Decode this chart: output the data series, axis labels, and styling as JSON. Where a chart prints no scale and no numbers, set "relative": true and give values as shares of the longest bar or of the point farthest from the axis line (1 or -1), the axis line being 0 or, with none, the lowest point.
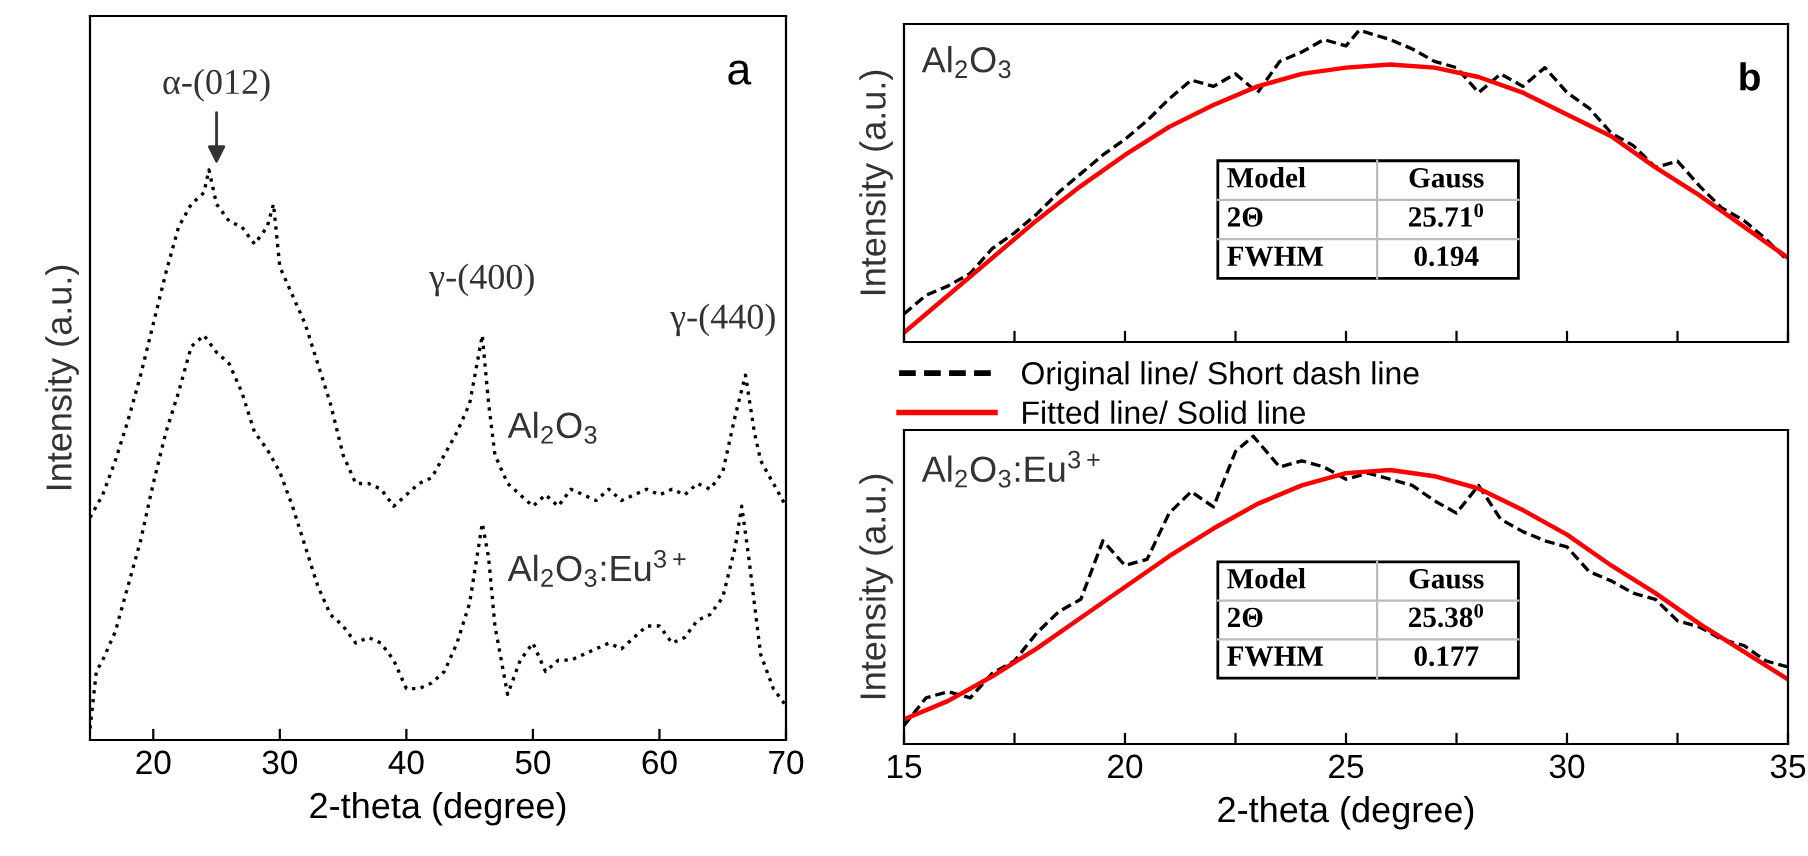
{
  "chart_data": [
    {
      "type": "line",
      "relative": true,
      "xlabel": "2-theta (degree)",
      "ylabel": "Intensity (a.u.)",
      "xlim": [
        15,
        70
      ],
      "xticks": [
        20,
        30,
        40,
        50,
        60,
        70
      ],
      "legend": false,
      "grid": false,
      "line_style": "dotted",
      "marker": "none",
      "tick_labels": "x",
      "annotations": [
        "a",
        {
          "text": "α-(012)",
          "x": 25,
          "y": 1.0
        },
        {
          "text": "γ-(400)",
          "x": 46,
          "y": 0.71
        },
        {
          "text": "γ-(440)",
          "x": 66.8,
          "y": 0.64
        }
      ],
      "series": [
        {
          "name": "Al$_{2}$O$_{3}$",
          "color": "#000000",
          "x": [
            15,
            16,
            17,
            18,
            19,
            20,
            21,
            22,
            23,
            24,
            24.4,
            25,
            26,
            27,
            28,
            29,
            29.5,
            30,
            31,
            32,
            33,
            34,
            35,
            36,
            37,
            38,
            39,
            40,
            41,
            42,
            43,
            44,
            45,
            46,
            46.5,
            47,
            48,
            49,
            50,
            51,
            52,
            53,
            54,
            55,
            56,
            57,
            58,
            59,
            60,
            61,
            62,
            63,
            64,
            65,
            66,
            66.8,
            67.5,
            68,
            69,
            70
          ],
          "values": [
            0.39,
            0.43,
            0.49,
            0.56,
            0.64,
            0.73,
            0.82,
            0.9,
            0.94,
            0.96,
            1.0,
            0.94,
            0.91,
            0.9,
            0.87,
            0.9,
            0.94,
            0.83,
            0.78,
            0.73,
            0.66,
            0.59,
            0.5,
            0.45,
            0.45,
            0.44,
            0.41,
            0.43,
            0.45,
            0.46,
            0.5,
            0.54,
            0.59,
            0.71,
            0.59,
            0.5,
            0.45,
            0.43,
            0.41,
            0.43,
            0.41,
            0.44,
            0.43,
            0.42,
            0.44,
            0.42,
            0.43,
            0.44,
            0.43,
            0.44,
            0.43,
            0.45,
            0.44,
            0.47,
            0.57,
            0.64,
            0.54,
            0.49,
            0.45,
            0.41
          ]
        },
        {
          "name": "Al$_{2}$O$_{3}$:Eu$^{3+}$",
          "color": "#000000",
          "x": [
            15,
            15.5,
            16,
            17,
            18,
            19,
            20,
            21,
            22,
            23,
            24,
            25,
            26,
            27,
            28,
            29,
            30,
            31,
            32,
            33,
            34,
            35,
            36,
            37,
            38,
            39,
            40,
            41,
            42,
            43,
            44,
            45,
            46,
            46.5,
            47,
            48,
            49,
            50,
            51,
            52,
            53,
            54,
            55,
            56,
            57,
            58,
            59,
            60,
            61,
            62,
            63,
            64,
            65,
            66,
            66.5,
            67,
            67.5,
            68,
            69,
            70
          ],
          "values": [
            0.02,
            0.12,
            0.14,
            0.19,
            0.27,
            0.35,
            0.45,
            0.54,
            0.61,
            0.69,
            0.71,
            0.68,
            0.66,
            0.61,
            0.54,
            0.51,
            0.47,
            0.41,
            0.34,
            0.27,
            0.22,
            0.2,
            0.17,
            0.18,
            0.17,
            0.14,
            0.09,
            0.09,
            0.1,
            0.12,
            0.17,
            0.24,
            0.38,
            0.32,
            0.2,
            0.08,
            0.14,
            0.17,
            0.12,
            0.14,
            0.14,
            0.15,
            0.16,
            0.17,
            0.16,
            0.18,
            0.2,
            0.2,
            0.17,
            0.18,
            0.21,
            0.22,
            0.25,
            0.34,
            0.41,
            0.33,
            0.24,
            0.15,
            0.09,
            0.06
          ]
        }
      ]
    },
    {
      "type": "line",
      "relative": true,
      "title": "Al$_{2}$O$_{3}$",
      "ylabel": "Intensity (a.u.)",
      "xlim": [
        15,
        35
      ],
      "xticks": [
        {
          "value": 15,
          "label": null
        },
        {
          "value": 17.5,
          "label": null
        },
        {
          "value": 20,
          "label": null
        },
        {
          "value": 22.5,
          "label": null
        },
        {
          "value": 25,
          "label": null
        },
        {
          "value": 27.5,
          "label": null
        },
        {
          "value": 30,
          "label": null
        },
        {
          "value": 32.5,
          "label": null
        },
        {
          "value": 35,
          "label": null
        }
      ],
      "legend": "bottom",
      "grid": false,
      "marker": "none",
      "tick_labels": false,
      "annotations": [
        "b",
        "Model",
        "Gauss",
        "2Θ",
        "25.71$^{0}$",
        "FWHM",
        "0.194"
      ],
      "series": [
        {
          "name": "Original line/ Short dash line",
          "color": "#000000",
          "line_style": "dashed",
          "x": [
            15,
            15.5,
            16,
            16.5,
            17,
            17.5,
            18,
            18.5,
            19,
            19.5,
            20,
            20.5,
            21,
            21.5,
            22,
            22.5,
            23,
            23.5,
            24,
            24.5,
            25,
            25.3,
            26,
            26.5,
            27,
            27.5,
            28,
            28.5,
            29,
            29.5,
            30,
            30.5,
            31,
            31.5,
            32,
            32.5,
            33,
            33.5,
            34,
            34.5,
            35
          ],
          "values": [
            0.09,
            0.15,
            0.18,
            0.22,
            0.3,
            0.35,
            0.41,
            0.48,
            0.54,
            0.6,
            0.65,
            0.71,
            0.78,
            0.84,
            0.82,
            0.86,
            0.8,
            0.9,
            0.93,
            0.97,
            0.95,
            1.0,
            0.97,
            0.94,
            0.9,
            0.88,
            0.8,
            0.86,
            0.82,
            0.88,
            0.8,
            0.75,
            0.67,
            0.63,
            0.56,
            0.58,
            0.5,
            0.43,
            0.39,
            0.33,
            0.26
          ]
        },
        {
          "name": "Fitted line/ Solid line",
          "color": "#ff0000",
          "line_style": "solid",
          "x": [
            15,
            16,
            17,
            18,
            19,
            20,
            21,
            22,
            23,
            24,
            25,
            26,
            27,
            28,
            29,
            30,
            31,
            32,
            33,
            34,
            35
          ],
          "values": [
            0.03,
            0.15,
            0.27,
            0.39,
            0.5,
            0.6,
            0.69,
            0.76,
            0.82,
            0.86,
            0.88,
            0.89,
            0.88,
            0.85,
            0.8,
            0.73,
            0.66,
            0.56,
            0.47,
            0.37,
            0.27
          ]
        }
      ]
    },
    {
      "type": "line",
      "relative": true,
      "title": "Al$_{2}$O$_{3}$:Eu$^{3+}$",
      "xlabel": "2-theta (degree)",
      "ylabel": "Intensity (a.u.)",
      "xlim": [
        15,
        35
      ],
      "xticks": [
        15,
        {
          "value": 17.5,
          "label": null
        },
        20,
        {
          "value": 22.5,
          "label": null
        },
        25,
        {
          "value": 27.5,
          "label": null
        },
        30,
        {
          "value": 32.5,
          "label": null
        },
        35
      ],
      "legend": false,
      "grid": false,
      "marker": "none",
      "tick_labels": "x",
      "annotations": [
        "Model",
        "Gauss",
        "2Θ",
        "25.38$^{0}$",
        "FWHM",
        "0.177"
      ],
      "series": [
        {
          "color": "#000000",
          "line_style": "dashed",
          "x": [
            15,
            15.5,
            16,
            16.5,
            17,
            17.5,
            18,
            18.5,
            19,
            19.5,
            20,
            20.5,
            21,
            21.5,
            22,
            22.5,
            22.9,
            23.5,
            24,
            24.5,
            25,
            25.5,
            26,
            26.5,
            27,
            27.5,
            28,
            28.5,
            29,
            29.5,
            30,
            30.5,
            31,
            31.5,
            32,
            32.5,
            33,
            33.5,
            34,
            34.5,
            35
          ],
          "values": [
            0.06,
            0.15,
            0.17,
            0.15,
            0.23,
            0.27,
            0.36,
            0.43,
            0.47,
            0.66,
            0.58,
            0.6,
            0.75,
            0.82,
            0.77,
            0.95,
            1.0,
            0.9,
            0.92,
            0.9,
            0.86,
            0.88,
            0.86,
            0.84,
            0.79,
            0.75,
            0.84,
            0.73,
            0.69,
            0.66,
            0.64,
            0.56,
            0.53,
            0.49,
            0.47,
            0.4,
            0.38,
            0.34,
            0.32,
            0.27,
            0.25
          ]
        },
        {
          "color": "#ff0000",
          "line_style": "solid",
          "x": [
            15,
            16,
            17,
            18,
            19,
            20,
            21,
            22,
            23,
            24,
            25,
            26,
            27,
            28,
            29,
            30,
            31,
            32,
            33,
            34,
            35
          ],
          "values": [
            0.08,
            0.14,
            0.22,
            0.31,
            0.41,
            0.51,
            0.61,
            0.7,
            0.78,
            0.84,
            0.88,
            0.89,
            0.87,
            0.83,
            0.76,
            0.68,
            0.58,
            0.49,
            0.39,
            0.3,
            0.21
          ]
        }
      ]
    }
  ]
}
